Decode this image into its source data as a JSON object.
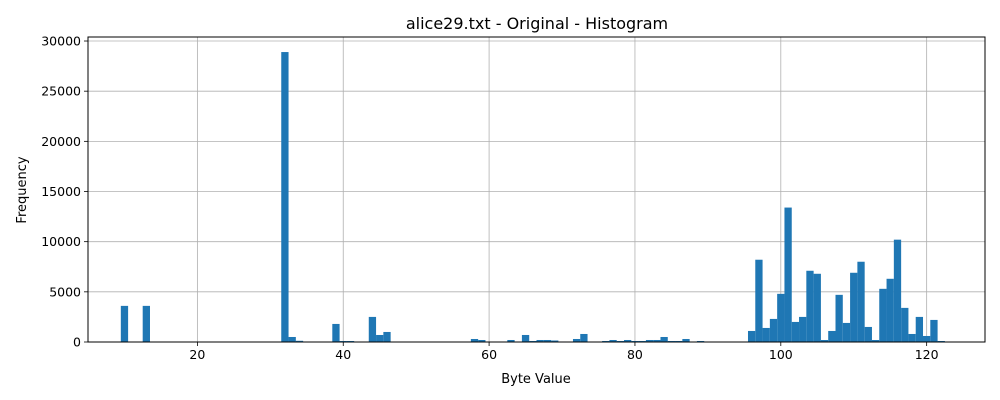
{
  "chart_data": {
    "type": "bar",
    "title": "alice29.txt - Original - Histogram",
    "xlabel": "Byte Value",
    "ylabel": "Frequency",
    "xlim": [
      5,
      128
    ],
    "ylim": [
      0,
      30400
    ],
    "xticks": [
      20,
      40,
      60,
      80,
      100,
      120
    ],
    "yticks": [
      0,
      5000,
      10000,
      15000,
      20000,
      25000,
      30000
    ],
    "grid": true,
    "bar_color": "#1f77b4",
    "bin_width": 1,
    "x": [
      10,
      13,
      32,
      33,
      34,
      39,
      40,
      41,
      44,
      45,
      46,
      58,
      59,
      63,
      65,
      66,
      67,
      68,
      69,
      70,
      72,
      73,
      76,
      77,
      78,
      79,
      80,
      81,
      82,
      83,
      84,
      85,
      86,
      87,
      89,
      96,
      97,
      98,
      99,
      100,
      101,
      102,
      103,
      104,
      105,
      106,
      107,
      108,
      109,
      110,
      111,
      112,
      113,
      114,
      115,
      116,
      117,
      118,
      119,
      120,
      121,
      122
    ],
    "values": [
      3600,
      3600,
      28900,
      500,
      120,
      1800,
      100,
      100,
      2500,
      700,
      1000,
      300,
      200,
      200,
      700,
      100,
      200,
      200,
      150,
      50,
      300,
      800,
      100,
      200,
      100,
      200,
      100,
      100,
      200,
      200,
      500,
      100,
      100,
      300,
      100,
      1100,
      8200,
      1400,
      2300,
      4800,
      13400,
      2000,
      2500,
      7100,
      6800,
      200,
      1100,
      4700,
      1900,
      6900,
      8000,
      1500,
      200,
      5300,
      6300,
      10200,
      3400,
      800,
      2500,
      600,
      2200,
      100
    ]
  }
}
